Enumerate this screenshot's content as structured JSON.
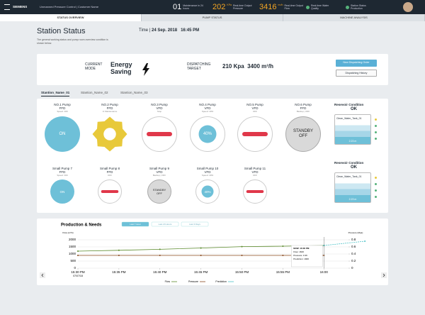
{
  "header": {
    "brand": "SIEMENS",
    "app": "Unmanned Pressure Control | Customer Name",
    "kpis": [
      {
        "value": "01",
        "label": "Maintenance in 24 hours"
      },
      {
        "value": "202",
        "unit": "KPa",
        "label": "Real-time Output Pressure"
      },
      {
        "value": "3416",
        "unit": "m³/h",
        "label": "Real-time Output Flow"
      },
      {
        "label": "Real-time Water Quality"
      },
      {
        "label": "Station Status Production"
      }
    ]
  },
  "tabs": [
    "STATUS OVERVIEW",
    "PUMP STATUS",
    "MACHINE ANALYSIS"
  ],
  "page": {
    "title": "Station Status",
    "time_label": "Time",
    "date": "24 Sep. 2018",
    "clock": "16:45 PM",
    "description": "The general working status and pump room overview condition is shown below."
  },
  "mode": {
    "mode_label": "CURRENT MODE",
    "mode": "Energy Saving",
    "target_label": "DISPATCHING TARGET",
    "pressure": "210 Kpa",
    "flow": "3400 m³/h",
    "buttons": [
      "New Dispatching Order",
      "Dispatching History"
    ]
  },
  "stations": [
    "Stantion_Name_01",
    "Stantion_Name_02",
    "Stantion_Name_03"
  ],
  "pumps": [
    {
      "name": "NO.1 Pump",
      "type": "FFD",
      "note": "Speed: 300",
      "state": "on",
      "display": "ON"
    },
    {
      "name": "NO.2 Pump",
      "type": "FFD",
      "note": "In Maintenance",
      "state": "maintenance"
    },
    {
      "name": "NO.3 Pump",
      "type": "VFD",
      "note": "Stop",
      "state": "stop"
    },
    {
      "name": "NO.4 Pump",
      "type": "VFD",
      "note": "Speed: 40%",
      "state": "speed",
      "display": "40%"
    },
    {
      "name": "NO.5 Pump",
      "type": "VFD",
      "note": "OFF",
      "state": "stop"
    },
    {
      "name": "NO.6 Pump",
      "type": "FFD",
      "note": "Backup | OFF",
      "state": "standby",
      "display": "STANDBY OFF"
    },
    {
      "name": "Small Pump 7",
      "type": "FFD",
      "note": "Speed: 300",
      "state": "on",
      "display": "ON"
    },
    {
      "name": "Small Pump 8",
      "type": "FFD",
      "note": "OFF",
      "state": "stop"
    },
    {
      "name": "Small Pump 9",
      "type": "VFD",
      "note": "Backup | OFF",
      "state": "standby",
      "display": "STANDBY OFF"
    },
    {
      "name": "Small Pump 10",
      "type": "VFD",
      "note": "Speed: 40%",
      "state": "speed",
      "display": "40%"
    },
    {
      "name": "Small Pump 11",
      "type": "VFD",
      "note": "OFF",
      "state": "stop"
    }
  ],
  "reservoirs": [
    {
      "title": "Resevoir Condition",
      "status": "OK",
      "tank": "Clean_Water_Tank_01",
      "level": "2.23 m"
    },
    {
      "title": "Resevoir Condition",
      "status": "OK",
      "tank": "Clean_Water_Tank_01",
      "level": "2.23 m"
    }
  ],
  "chart_data": {
    "type": "line",
    "title": "Production & Needs",
    "ranges": [
      "Last 7 Hour",
      "Last 24 Hours",
      "Last 3 Days"
    ],
    "y_label": "Flow (m³/h)",
    "y2_label": "Pressure (Mpa)",
    "start_date": "07/07/18",
    "categories": [
      "15:30 PM",
      "15:35 PM",
      "15:40 PM",
      "15:45 PM",
      "15:50 PM",
      "15:55 PM",
      "16:00",
      null
    ],
    "ylim": [
      0,
      2000
    ],
    "yticks": [
      0,
      500,
      1000,
      1500,
      2000
    ],
    "y2lim": [
      0,
      0.8
    ],
    "y2ticks": [
      0,
      0.2,
      0.4,
      0.6,
      0.8
    ],
    "series": [
      {
        "name": "Flow",
        "color": "#5a8a2a",
        "values": [
          1200,
          1260,
          1330,
          1420,
          1520,
          1550,
          1600,
          null
        ]
      },
      {
        "name": "Pressure",
        "color": "#8a4a1e",
        "axis": "y2",
        "values": [
          0.36,
          0.36,
          0.36,
          0.36,
          0.36,
          0.36,
          0.36,
          null
        ]
      },
      {
        "name": "Prediction",
        "color": "#4fc3c8",
        "values": [
          null,
          null,
          null,
          null,
          null,
          null,
          1600,
          1900
        ]
      }
    ],
    "tooltip": [
      "NOW: 16:00 PM",
      "Flow: 1600",
      "Pressure: 0.36",
      "Prediction: 1900"
    ]
  }
}
